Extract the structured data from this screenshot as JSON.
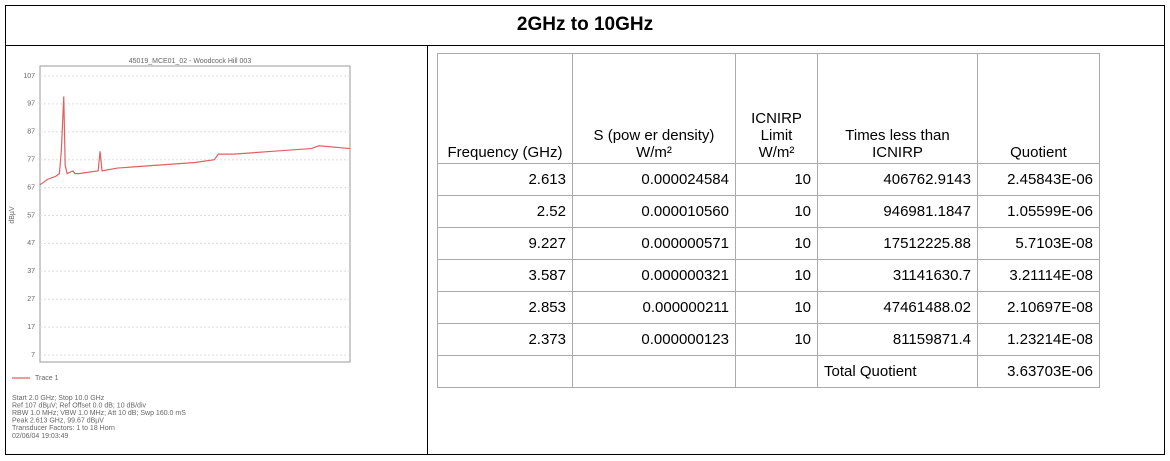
{
  "title": "2GHz to 10GHz",
  "chart_data": {
    "type": "line",
    "title": "45019_MCE01_02 - Woodcock Hill 003",
    "y_label": "dBµV",
    "x": [
      2.0,
      2.2,
      2.4,
      2.5,
      2.55,
      2.613,
      2.65,
      2.7,
      2.85,
      2.9,
      3.0,
      3.5,
      3.55,
      3.6,
      4.0,
      5.0,
      6.0,
      6.5,
      6.6,
      7.0,
      8.0,
      9.0,
      9.2,
      10.0
    ],
    "series": [
      {
        "name": "Trace 1",
        "color": "#e06060",
        "values": [
          68,
          70,
          71,
          72,
          80,
          99.67,
          75,
          72,
          73,
          72,
          72,
          73,
          80,
          73,
          74,
          75,
          76,
          77,
          79,
          79,
          80,
          81,
          82,
          81
        ]
      }
    ],
    "xlim": [
      2,
      10
    ],
    "ylim": [
      7,
      107
    ],
    "yticks": [
      7,
      17,
      27,
      37,
      47,
      57,
      67,
      77,
      87,
      97,
      107
    ],
    "grid": true
  },
  "chart_notes": [
    "Start 2.0 GHz; Stop 10.0 GHz",
    "Ref 107 dBµV; Ref Offset 0.0 dB; 10 dB/div",
    "RBW 1.0 MHz; VBW 1.0 MHz; Att 10 dB; Swp 160.0 mS",
    "Peak 2.613 GHz, 99.67 dBµV",
    "Transducer Factors: 1 to 18 Horn",
    "02/06/04 19:03:49"
  ],
  "table": {
    "header": [
      "Frequency (GHz)",
      "S (pow er density) W/m²",
      "ICNIRP Limit W/m²",
      "Times less than ICNIRP",
      "Quotient"
    ],
    "rows": [
      [
        "2.613",
        "0.000024584",
        "10",
        "406762.9143",
        "2.45843E-06"
      ],
      [
        "2.52",
        "0.000010560",
        "10",
        "946981.1847",
        "1.05599E-06"
      ],
      [
        "9.227",
        "0.000000571",
        "10",
        "17512225.88",
        "5.7103E-08"
      ],
      [
        "3.587",
        "0.000000321",
        "10",
        "31141630.7",
        "3.21114E-08"
      ],
      [
        "2.853",
        "0.000000211",
        "10",
        "47461488.02",
        "2.10697E-08"
      ],
      [
        "2.373",
        "0.000000123",
        "10",
        "81159871.4",
        "1.23214E-08"
      ]
    ],
    "total": {
      "label": "Total Quotient",
      "value": "3.63703E-06"
    }
  }
}
